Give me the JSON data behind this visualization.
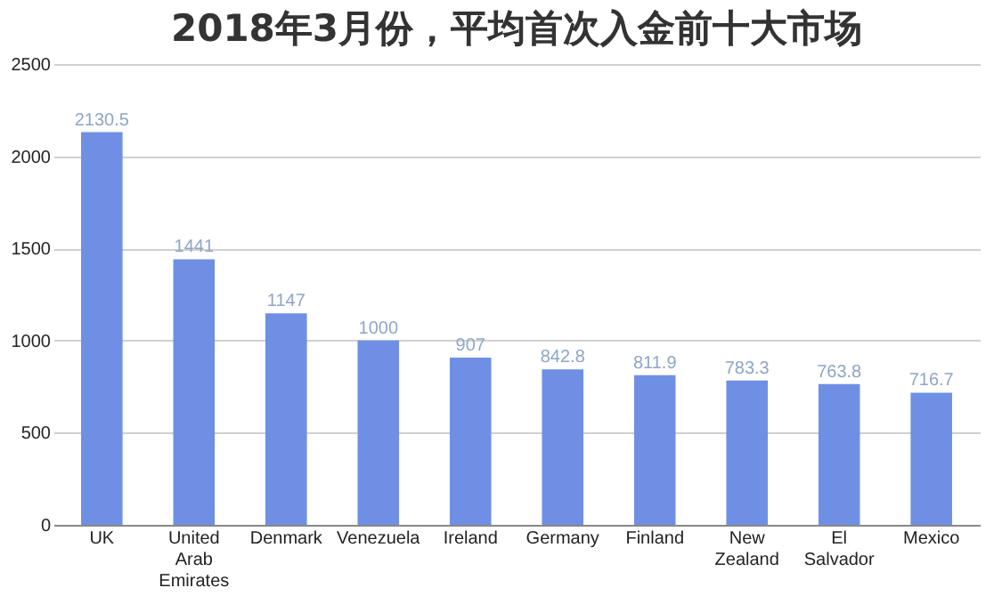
{
  "chart_data": {
    "type": "bar",
    "title": "2018年3月份，平均首次入金前十大市场",
    "categories": [
      "UK",
      "United Arab Emirates",
      "Denmark",
      "Venezuela",
      "Ireland",
      "Germany",
      "Finland",
      "New Zealand",
      "El Salvador",
      "Mexico"
    ],
    "values": [
      2130.5,
      1441,
      1147,
      1000,
      907,
      842.8,
      811.9,
      783.3,
      763.8,
      716.7
    ],
    "color": "#6e8fe3",
    "ylim": [
      0,
      2500
    ],
    "yticks": [
      0,
      500,
      1000,
      1500,
      2000,
      2500
    ],
    "grid": "y",
    "data_labels": true
  }
}
